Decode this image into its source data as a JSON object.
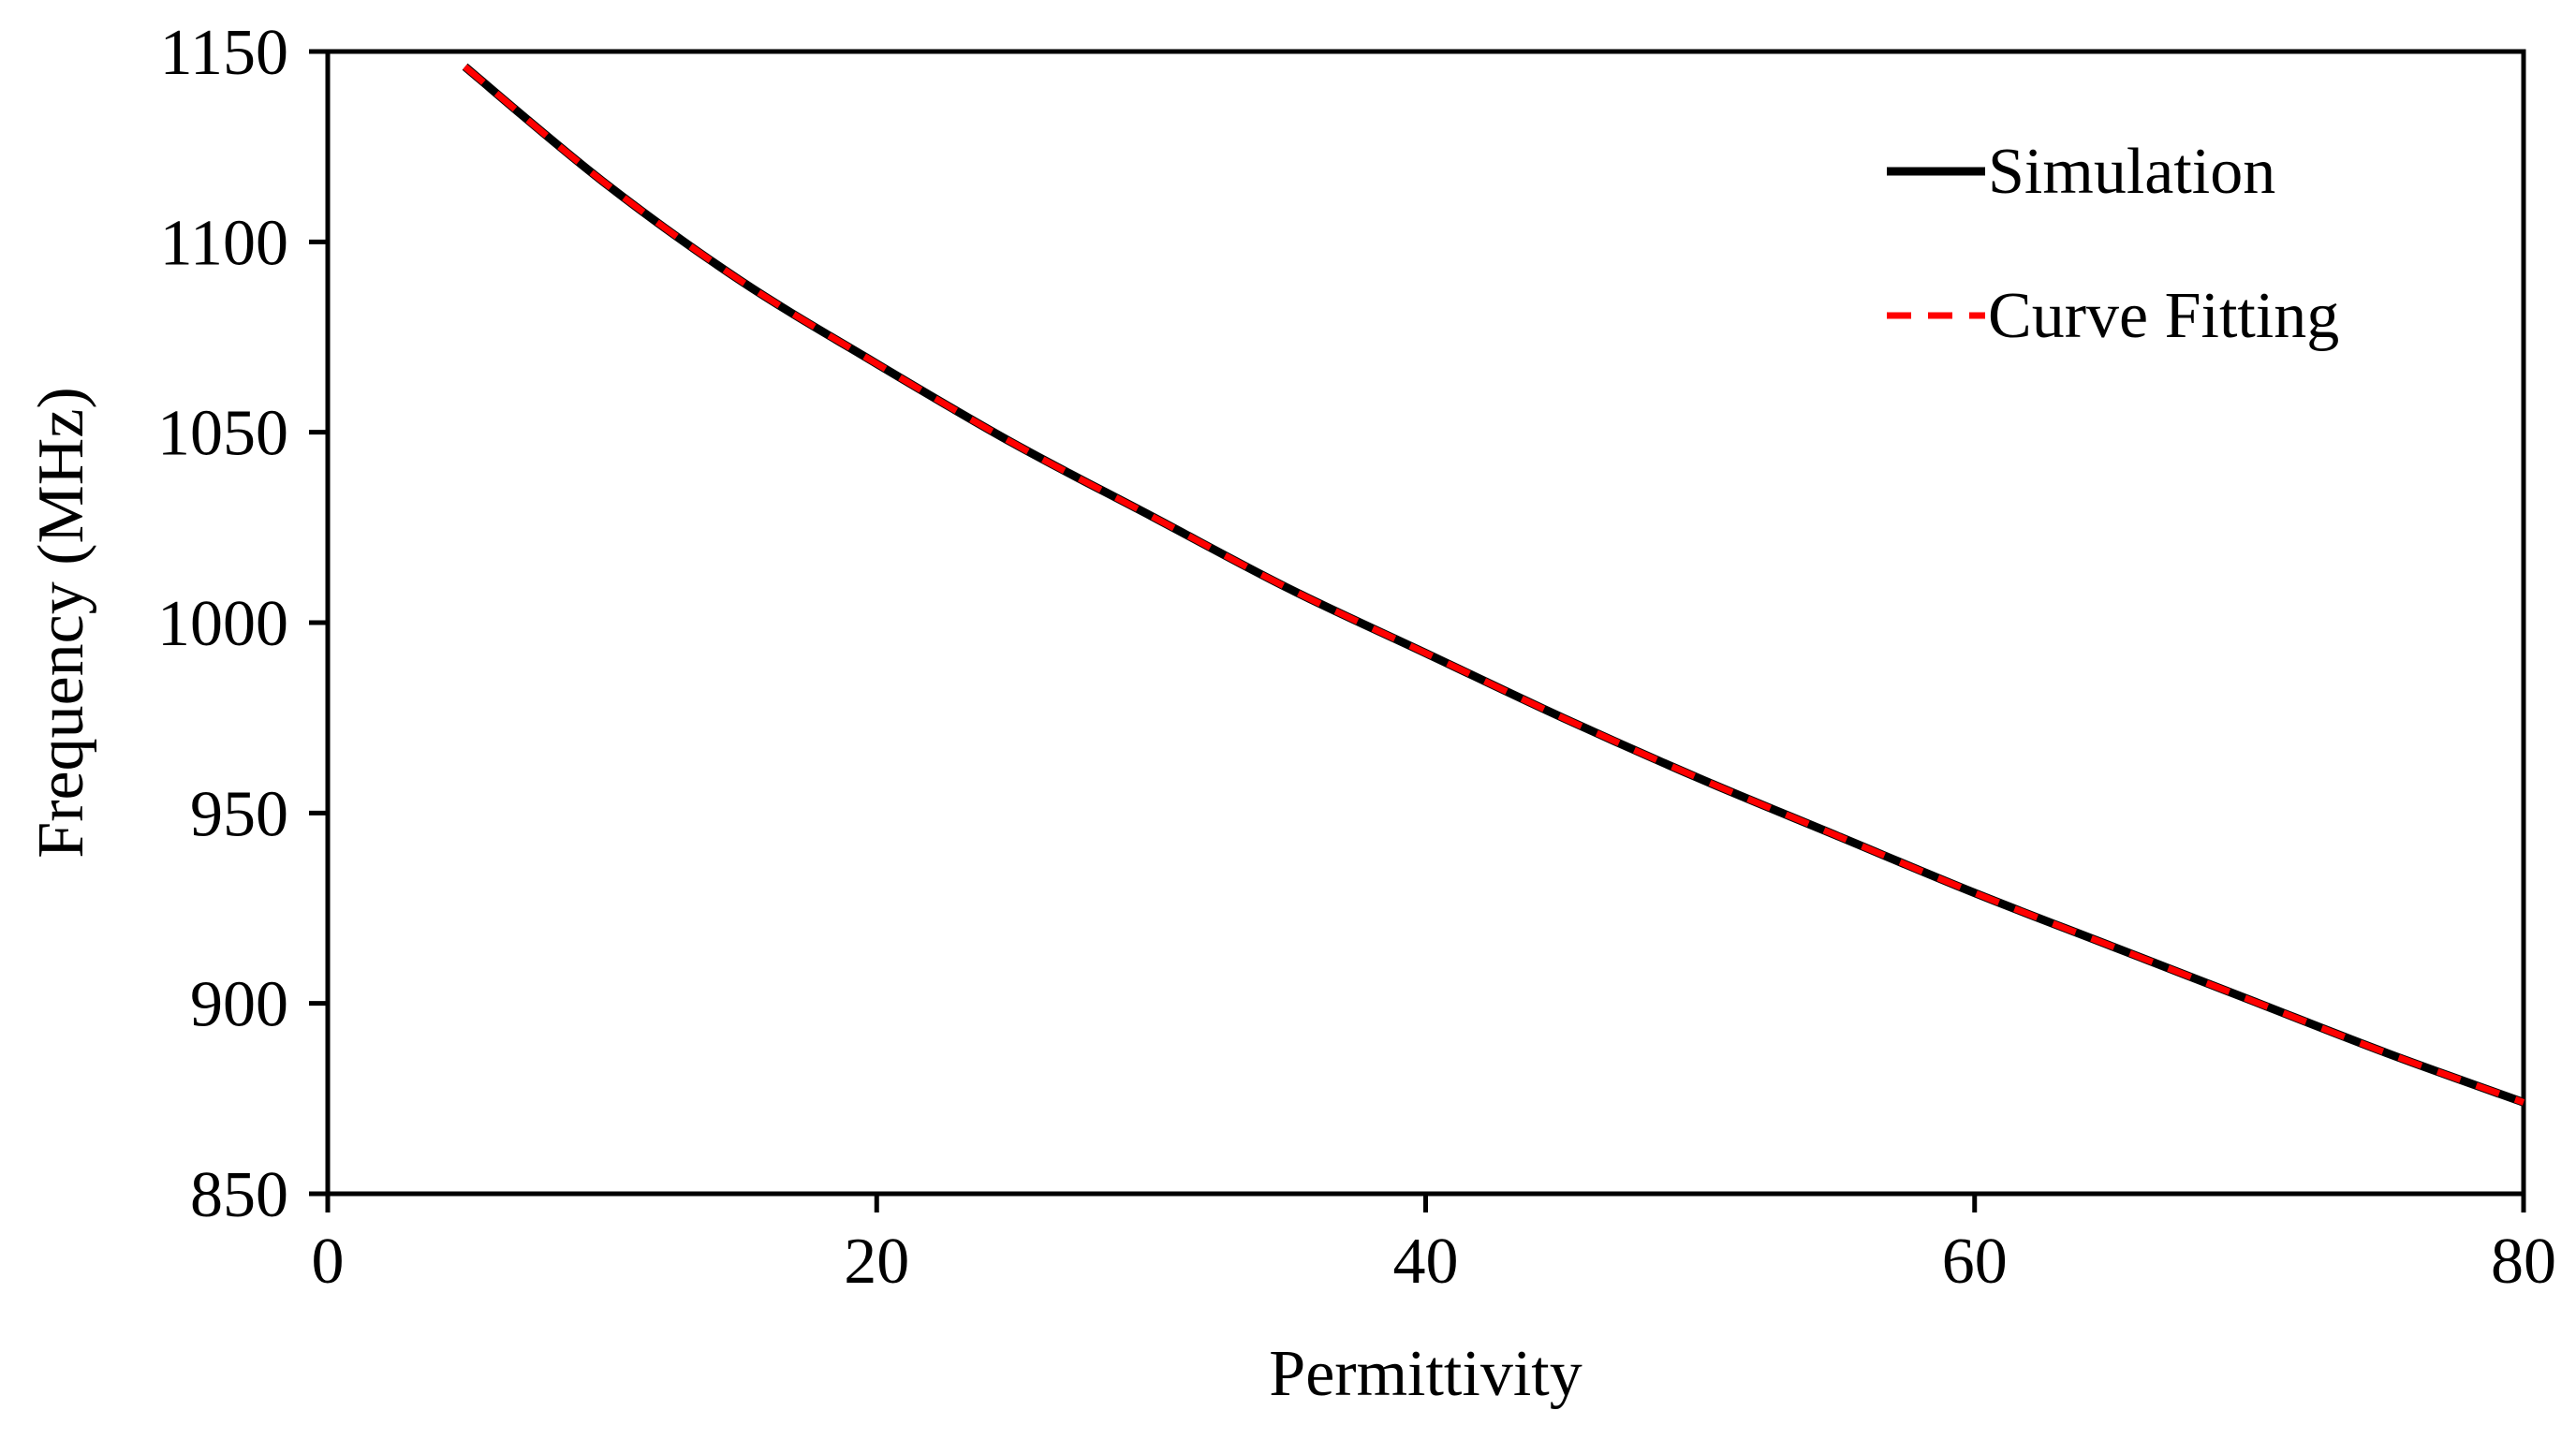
{
  "chart_data": {
    "type": "line",
    "title": "",
    "xlabel": "Permittivity",
    "ylabel": "Frequency (MHz)",
    "xlim": [
      0,
      80
    ],
    "ylim": [
      850,
      1150
    ],
    "xticks": [
      0,
      20,
      40,
      60,
      80
    ],
    "yticks": [
      850,
      900,
      950,
      1000,
      1050,
      1100,
      1150
    ],
    "grid": false,
    "legend_position": "top-right",
    "series": [
      {
        "name": "Simulation",
        "color": "#000000",
        "style": "solid",
        "x": [
          5,
          10,
          15,
          20,
          25,
          30,
          35,
          40,
          45,
          50,
          55,
          60,
          65,
          70,
          75,
          80
        ],
        "y": [
          1146,
          1116,
          1090,
          1068,
          1047,
          1028,
          1009,
          992,
          975,
          959,
          944,
          929,
          915,
          901,
          887,
          874
        ]
      },
      {
        "name": "Curve Fitting",
        "color": "#ff0000",
        "style": "dashed",
        "x": [
          5,
          10,
          15,
          20,
          25,
          30,
          35,
          40,
          45,
          50,
          55,
          60,
          65,
          70,
          75,
          80
        ],
        "y": [
          1146,
          1116,
          1090,
          1068,
          1047,
          1028,
          1009,
          992,
          975,
          959,
          944,
          929,
          915,
          901,
          887,
          874
        ]
      }
    ]
  }
}
